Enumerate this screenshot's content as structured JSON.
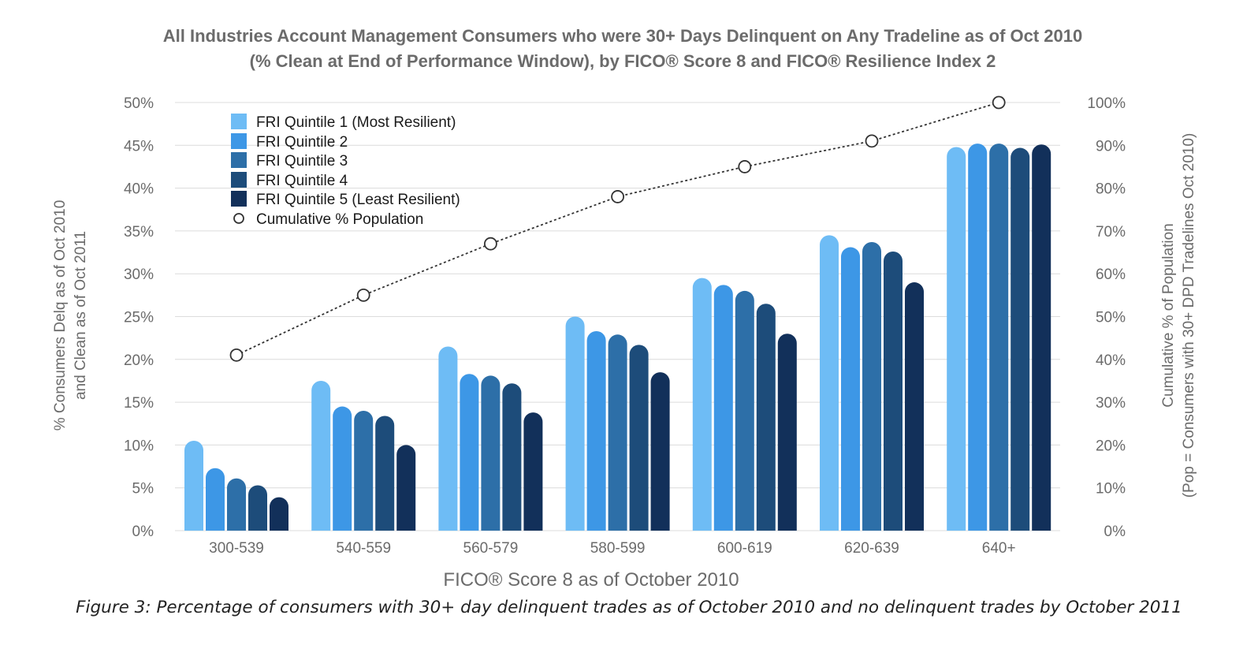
{
  "chart_data": {
    "type": "bar",
    "title_lines": [
      "All Industries Account Management Consumers who were 30+ Days Delinquent on Any Tradeline as of Oct 2010",
      "(% Clean at End of Performance Window), by FICO® Score 8 and FICO® Resilience Index 2"
    ],
    "categories": [
      "300-539",
      "540-559",
      "560-579",
      "580-599",
      "600-619",
      "620-639",
      "640+"
    ],
    "series": [
      {
        "name": "FRI Quintile 1 (Most Resilient)",
        "color": "#6ebcf5",
        "values": [
          10.5,
          17.5,
          21.5,
          25,
          29.5,
          34.5,
          44.8
        ]
      },
      {
        "name": "FRI Quintile 2",
        "color": "#3d97e6",
        "values": [
          7.3,
          14.5,
          18.3,
          23.3,
          28.7,
          33.1,
          45.2
        ]
      },
      {
        "name": "FRI Quintile 3",
        "color": "#2d6fa8",
        "values": [
          6.1,
          14.0,
          18.1,
          22.9,
          28.0,
          33.7,
          45.2
        ]
      },
      {
        "name": "FRI Quintile 4",
        "color": "#1d4c7a",
        "values": [
          5.3,
          13.4,
          17.2,
          21.7,
          26.5,
          32.6,
          44.7
        ]
      },
      {
        "name": "FRI Quintile 5 (Least Resilient)",
        "color": "#12305a",
        "values": [
          3.9,
          10.0,
          13.8,
          18.5,
          23.0,
          29.0,
          45.1
        ]
      }
    ],
    "line_series": {
      "name": "Cumulative % Population",
      "values": [
        41,
        55,
        67,
        78,
        85,
        91,
        100
      ]
    },
    "ylim": [
      0,
      50
    ],
    "y_ticks": [
      "0%",
      "5%",
      "10%",
      "15%",
      "20%",
      "25%",
      "30%",
      "35%",
      "40%",
      "45%",
      "50%"
    ],
    "y2lim": [
      0,
      100
    ],
    "y2_ticks": [
      "0%",
      "10%",
      "20%",
      "30%",
      "40%",
      "50%",
      "60%",
      "70%",
      "80%",
      "90%",
      "100%"
    ],
    "ylabel_lines": [
      "% Consumers Delq as of Oct 2010",
      "and Clean as of Oct 2011"
    ],
    "y2label_lines": [
      "Cumulative % of Population",
      "(Pop = Consumers with 30+ DPD Tradelines Oct 2010)"
    ],
    "xlabel": "FICO® Score 8 as of October 2010",
    "legend_position": "top-left"
  },
  "caption": "Figure 3: Percentage of consumers with 30+ day delinquent trades as of October 2010 and no delinquent trades by October 2011"
}
